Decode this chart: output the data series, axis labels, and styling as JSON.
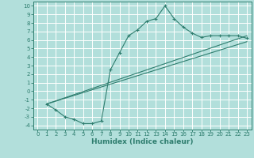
{
  "xlabel": "Humidex (Indice chaleur)",
  "bg_color": "#b2dfdb",
  "grid_color": "#ffffff",
  "line_color": "#2e7d6e",
  "xlim": [
    -0.5,
    23.5
  ],
  "ylim": [
    -4.5,
    10.5
  ],
  "xticks": [
    0,
    1,
    2,
    3,
    4,
    5,
    6,
    7,
    8,
    9,
    10,
    11,
    12,
    13,
    14,
    15,
    16,
    17,
    18,
    19,
    20,
    21,
    22,
    23
  ],
  "yticks": [
    -4,
    -3,
    -2,
    -1,
    0,
    1,
    2,
    3,
    4,
    5,
    6,
    7,
    8,
    9,
    10
  ],
  "curve1_x": [
    1,
    2,
    3,
    4,
    5,
    6,
    7,
    8,
    9,
    10,
    11,
    12,
    13,
    14,
    15,
    16,
    17,
    18,
    19,
    20,
    21,
    22,
    23
  ],
  "curve1_y": [
    -1.5,
    -2.2,
    -3.0,
    -3.3,
    -3.8,
    -3.8,
    -3.5,
    2.5,
    4.5,
    6.5,
    7.2,
    8.2,
    8.5,
    10.0,
    8.5,
    7.5,
    6.8,
    6.3,
    6.5,
    6.5,
    6.5,
    6.5,
    6.2
  ],
  "curve2_x": [
    1,
    23
  ],
  "curve2_y": [
    -1.5,
    6.5
  ],
  "curve3_x": [
    1,
    23
  ],
  "curve3_y": [
    -1.5,
    5.8
  ],
  "tick_fontsize": 5.0,
  "xlabel_fontsize": 6.5
}
